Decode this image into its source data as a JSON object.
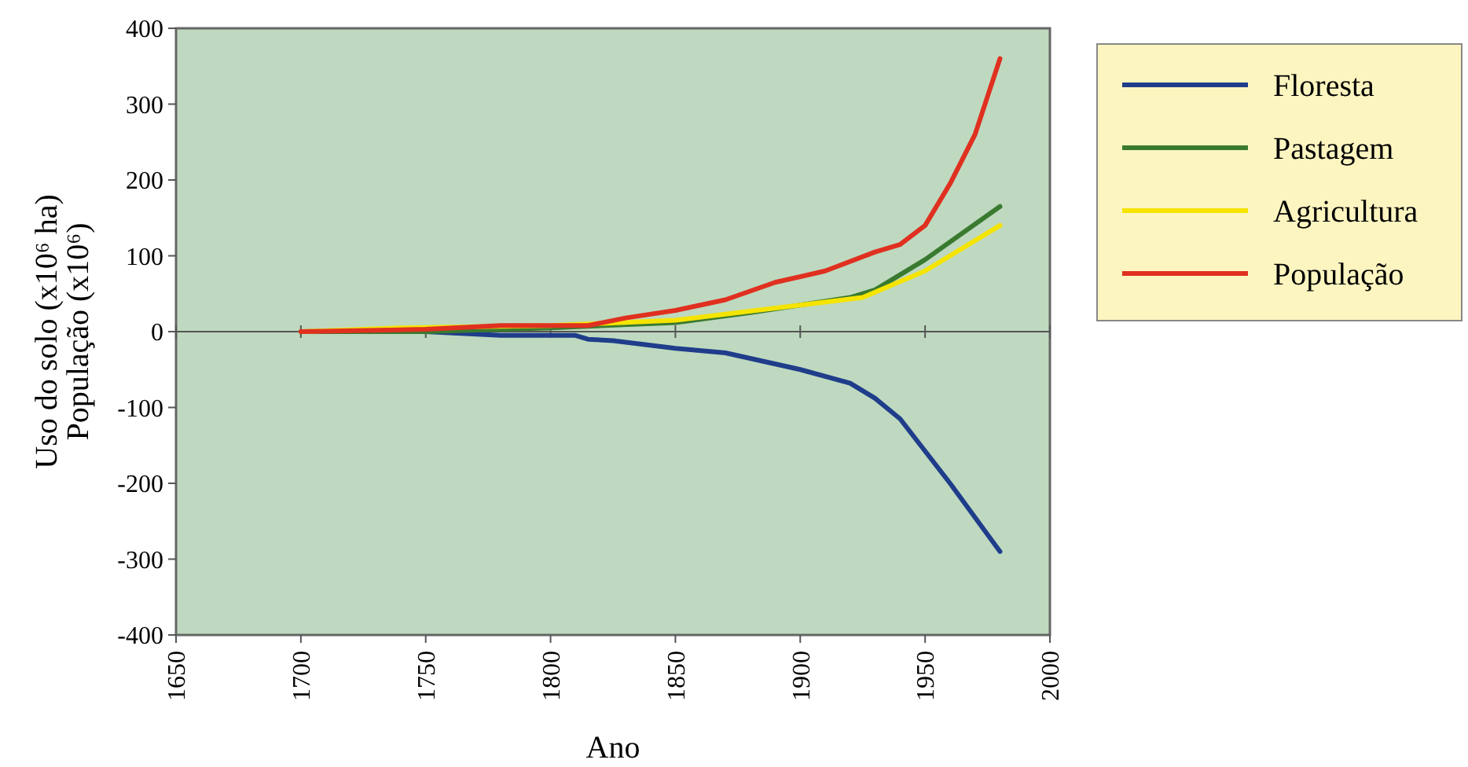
{
  "chart_data": {
    "type": "line",
    "xlabel": "Ano",
    "ylabel": "Uso do solo (x10⁶ ha)\nPopulação (x10⁶)",
    "xlim": [
      1650,
      2000
    ],
    "xticks": [
      1650,
      1700,
      1750,
      1800,
      1850,
      1900,
      1950,
      2000
    ],
    "ylim": [
      -400,
      400
    ],
    "yticks": [
      -400,
      -300,
      -200,
      -100,
      0,
      100,
      200,
      300,
      400
    ],
    "legend": "right",
    "series": [
      {
        "name": "Floresta",
        "color": "#1f3d8a",
        "x": [
          1700,
          1750,
          1780,
          1810,
          1815,
          1825,
          1850,
          1870,
          1900,
          1920,
          1930,
          1940,
          1960,
          1980
        ],
        "values": [
          0,
          0,
          -5,
          -5,
          -10,
          -12,
          -22,
          -28,
          -50,
          -68,
          -88,
          -115,
          -200,
          -290
        ]
      },
      {
        "name": "Pastagem",
        "color": "#3a7a30",
        "x": [
          1700,
          1750,
          1800,
          1850,
          1880,
          1920,
          1930,
          1950,
          1980
        ],
        "values": [
          0,
          0,
          5,
          12,
          25,
          45,
          55,
          95,
          165
        ]
      },
      {
        "name": "Agricultura",
        "color": "#f5e400",
        "x": [
          1700,
          1740,
          1800,
          1850,
          1900,
          1925,
          1950,
          1980
        ],
        "values": [
          0,
          5,
          8,
          15,
          35,
          45,
          80,
          140
        ]
      },
      {
        "name": "População",
        "color": "#e03020",
        "x": [
          1700,
          1750,
          1780,
          1815,
          1830,
          1850,
          1870,
          1890,
          1910,
          1930,
          1940,
          1950,
          1960,
          1970,
          1975,
          1980
        ],
        "values": [
          0,
          3,
          8,
          8,
          18,
          28,
          42,
          65,
          80,
          105,
          115,
          140,
          195,
          260,
          310,
          360
        ]
      }
    ]
  }
}
